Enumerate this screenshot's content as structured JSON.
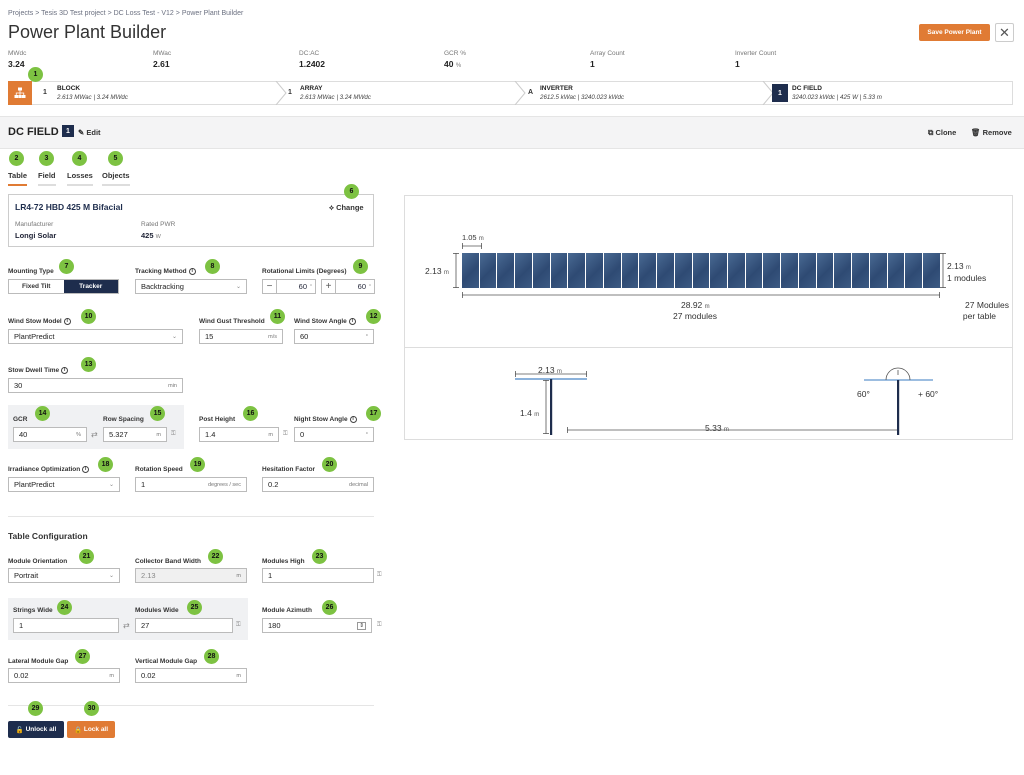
{
  "breadcrumb": {
    "items": [
      "Projects",
      "Tesis 3D Test project",
      "DC Loss Test - V12",
      "Power Plant Builder"
    ],
    "sep": ">"
  },
  "page_title": "Power Plant Builder",
  "save_label": "Save Power Plant",
  "close_glyph": "✕",
  "summary": [
    {
      "label": "MWdc",
      "value": "3.24",
      "unit": ""
    },
    {
      "label": "MWac",
      "value": "2.61",
      "unit": ""
    },
    {
      "label": "DC:AC",
      "value": "1.2402",
      "unit": ""
    },
    {
      "label": "GCR %",
      "value": "40",
      "unit": "%"
    },
    {
      "label": "Array Count",
      "value": "1",
      "unit": ""
    },
    {
      "label": "Inverter Count",
      "value": "1",
      "unit": ""
    }
  ],
  "chain": [
    {
      "num": "1",
      "title": "BLOCK",
      "sub": "2.613 MWac | 3.24 MWdc"
    },
    {
      "num": "1",
      "title": "ARRAY",
      "sub": "2.613 MWac | 3.24 MWdc"
    },
    {
      "num": "A",
      "title": "INVERTER",
      "sub": "2612.5 kWac | 3240.023 kWdc"
    },
    {
      "num": "1",
      "title": "DC FIELD",
      "sub": "3240.023 kWdc | 425 W | 5.33 m"
    }
  ],
  "dc_field": {
    "title": "DC FIELD",
    "badge": "1",
    "edit_label": "Edit",
    "clone_label": "Clone",
    "remove_label": "Remove"
  },
  "tabs": [
    {
      "label": "Table"
    },
    {
      "label": "Field"
    },
    {
      "label": "Losses"
    },
    {
      "label": "Objects"
    }
  ],
  "module": {
    "name": "LR4-72 HBD 425 M Bifacial",
    "change_label": "Change",
    "manufacturer_label": "Manufacturer",
    "manufacturer": "Longi Solar",
    "rated_label": "Rated PWR",
    "rated_value": "425",
    "rated_unit": "W"
  },
  "form": {
    "mounting_type_label": "Mounting Type",
    "mounting_options": [
      "Fixed Tilt",
      "Tracker"
    ],
    "tracking_method_label": "Tracking Method",
    "tracking_method": "Backtracking",
    "rot_limits_label": "Rotational Limits (Degrees)",
    "rot_min": "60",
    "rot_max": "60",
    "wind_stow_label": "Wind Stow Model",
    "wind_stow": "PlantPredict",
    "wind_gust_label": "Wind Gust Threshold",
    "wind_gust": "15",
    "wind_gust_unit": "m/s",
    "wind_angle_label": "Wind Stow Angle",
    "wind_angle": "60",
    "stow_dwell_label": "Stow Dwell Time",
    "stow_dwell": "30",
    "stow_dwell_unit": "min",
    "gcr_label": "GCR",
    "gcr": "40",
    "gcr_unit": "%",
    "row_spacing_label": "Row Spacing",
    "row_spacing": "5.327",
    "row_spacing_unit": "m",
    "post_height_label": "Post Height",
    "post_height": "1.4",
    "post_height_unit": "m",
    "night_angle_label": "Night Stow Angle",
    "night_angle": "0",
    "irr_opt_label": "Irradiance Optimization",
    "irr_opt": "PlantPredict",
    "rot_speed_label": "Rotation Speed",
    "rot_speed": "1",
    "rot_speed_unit": "degrees / sec",
    "hesitation_label": "Hesitation Factor",
    "hesitation": "0.2",
    "hesitation_unit": "decimal"
  },
  "table_config": {
    "heading": "Table Configuration",
    "orientation_label": "Module Orientation",
    "orientation": "Portrait",
    "band_label": "Collector Band Width",
    "band": "2.13",
    "band_unit": "m",
    "mod_high_label": "Modules High",
    "mod_high": "1",
    "strings_wide_label": "Strings Wide",
    "strings_wide": "1",
    "mod_wide_label": "Modules Wide",
    "mod_wide": "27",
    "azimuth_label": "Module Azimuth",
    "azimuth": "180",
    "lat_gap_label": "Lateral Module Gap",
    "lat_gap": "0.02",
    "lat_gap_unit": "m",
    "vert_gap_label": "Vertical Module Gap",
    "vert_gap": "0.02",
    "vert_gap_unit": "m"
  },
  "actions": {
    "unlock_label": "Unlock all",
    "lock_label": "Lock all"
  },
  "viz_top": {
    "module_width": "1.05",
    "height_left": "2.13",
    "height_right": "2.13",
    "modules_high_text": "1 modules",
    "table_length": "28.92",
    "modules_count_text": "27 modules",
    "modules_per_table_1": "27 Modules",
    "modules_per_table_2": "per table",
    "unit_m": "m",
    "module_count": 27
  },
  "viz_bottom": {
    "band": "2.13",
    "post_height": "1.4",
    "row_spacing": "5.33",
    "angle_left": "60°",
    "angle_right": "+ 60°",
    "unit_m": "m"
  },
  "markers": [
    "1",
    "2",
    "3",
    "4",
    "5",
    "6",
    "7",
    "8",
    "9",
    "10",
    "11",
    "12",
    "13",
    "14",
    "15",
    "16",
    "17",
    "18",
    "19",
    "20",
    "21",
    "22",
    "23",
    "24",
    "25",
    "26",
    "27",
    "28",
    "29",
    "30"
  ],
  "colors": {
    "accent": "#e07b34",
    "navy": "#1e2d4d",
    "marker": "#7dc242",
    "panel": "#2e4a73"
  }
}
